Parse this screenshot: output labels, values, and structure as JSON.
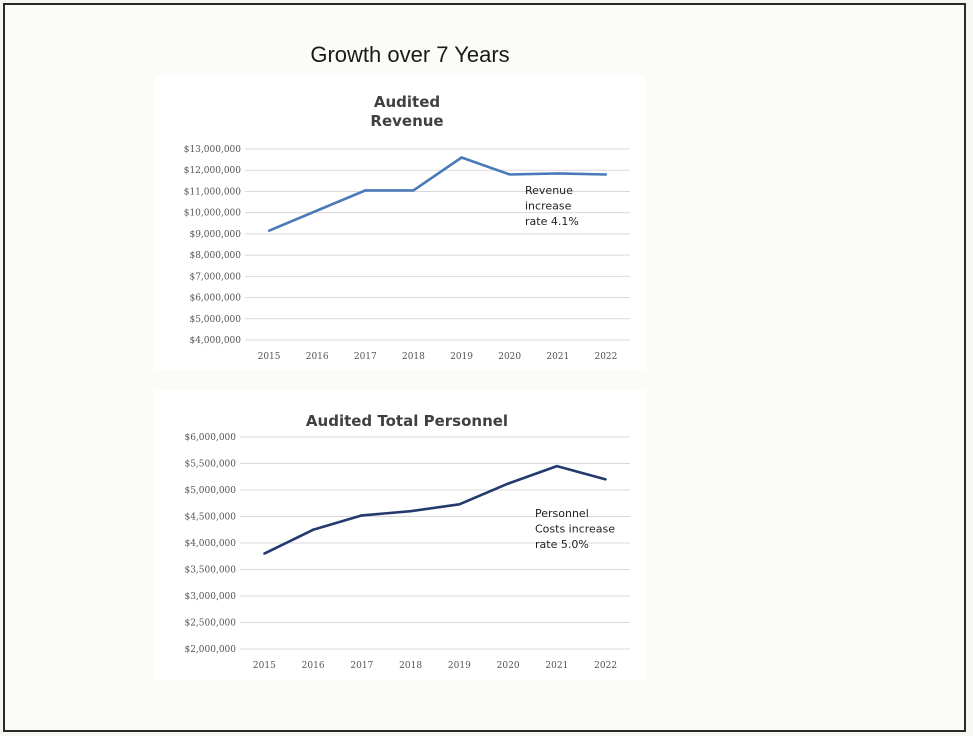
{
  "slide": {
    "title": "Growth over 7 Years"
  },
  "chart_data": [
    {
      "type": "line",
      "title_lines": [
        "Audited",
        "Revenue"
      ],
      "categories": [
        "2015",
        "2016",
        "2017",
        "2018",
        "2019",
        "2020",
        "2021",
        "2022"
      ],
      "values": [
        9150000,
        10100000,
        11050000,
        11050000,
        12600000,
        11800000,
        11850000,
        11800000
      ],
      "ylim": [
        4000000,
        13000000
      ],
      "yticks": [
        4000000,
        5000000,
        6000000,
        7000000,
        8000000,
        9000000,
        10000000,
        11000000,
        12000000,
        13000000
      ],
      "ytick_labels": [
        "$4,000,000",
        "$5,000,000",
        "$6,000,000",
        "$7,000,000",
        "$8,000,000",
        "$9,000,000",
        "$10,000,000",
        "$11,000,000",
        "$12,000,000",
        "$13,000,000"
      ],
      "annotation_lines": [
        "Revenue",
        "increase",
        "rate 4.1%"
      ],
      "grid": true,
      "color": "#4a7ab8"
    },
    {
      "type": "line",
      "title_lines": [
        "Audited Total Personnel"
      ],
      "categories": [
        "2015",
        "2016",
        "2017",
        "2018",
        "2019",
        "2020",
        "2021",
        "2022"
      ],
      "values": [
        3800000,
        4250000,
        4520000,
        4600000,
        4730000,
        5120000,
        5450000,
        5200000
      ],
      "ylim": [
        2000000,
        6000000
      ],
      "yticks": [
        2000000,
        2500000,
        3000000,
        3500000,
        4000000,
        4500000,
        5000000,
        5500000,
        6000000
      ],
      "ytick_labels": [
        "$2,000,000",
        "$2,500,000",
        "$3,000,000",
        "$3,500,000",
        "$4,000,000",
        "$4,500,000",
        "$5,000,000",
        "$5,500,000",
        "$6,000,000"
      ],
      "annotation_lines": [
        "Personnel",
        "Costs increase",
        "rate 5.0%"
      ],
      "grid": true,
      "color": "#243a6e"
    }
  ]
}
